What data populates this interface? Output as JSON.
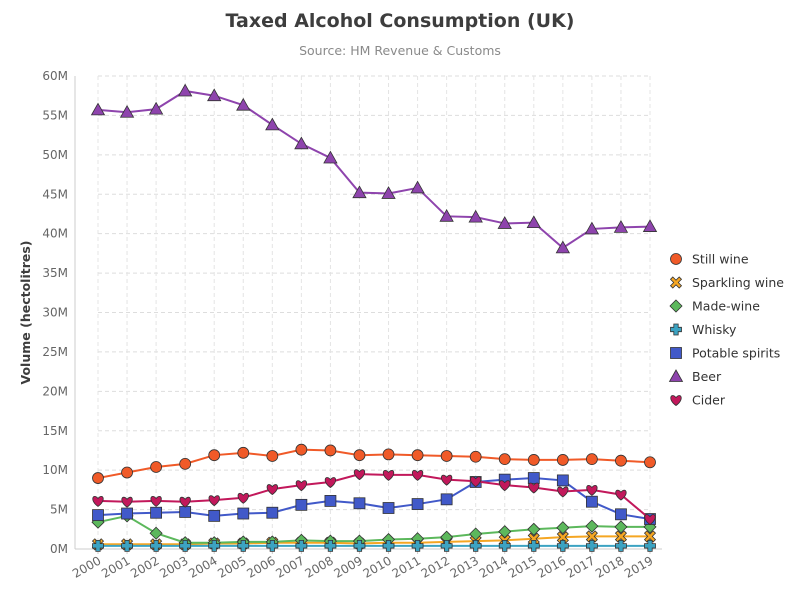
{
  "title": "Taxed Alcohol Consumption (UK)",
  "subtitle": "Source: HM Revenue & Customs",
  "chart_data": {
    "type": "line",
    "title": "Taxed Alcohol Consumption (UK)",
    "subtitle": "Source: HM Revenue & Customs",
    "xlabel": "",
    "ylabel": "Volume (hectolitres)",
    "ylim": [
      0,
      60000000
    ],
    "yticks": [
      "0M",
      "5M",
      "10M",
      "15M",
      "20M",
      "25M",
      "30M",
      "35M",
      "40M",
      "45M",
      "50M",
      "55M",
      "60M"
    ],
    "grid": true,
    "legend_position": "right",
    "categories": [
      "2000",
      "2001",
      "2002",
      "2003",
      "2004",
      "2005",
      "2006",
      "2007",
      "2008",
      "2009",
      "2010",
      "2011",
      "2012",
      "2013",
      "2014",
      "2015",
      "2016",
      "2017",
      "2018",
      "2019"
    ],
    "series": [
      {
        "name": "Still wine",
        "color": "#f05a28",
        "marker": "circle",
        "values": [
          9000000,
          9700000,
          10400000,
          10800000,
          11900000,
          12200000,
          11800000,
          12600000,
          12500000,
          11900000,
          12000000,
          11900000,
          11800000,
          11700000,
          11400000,
          11300000,
          11300000,
          11400000,
          11200000,
          11000000
        ]
      },
      {
        "name": "Sparkling wine",
        "color": "#f5a623",
        "marker": "cross",
        "values": [
          600000,
          600000,
          600000,
          600000,
          700000,
          700000,
          800000,
          800000,
          800000,
          700000,
          800000,
          800000,
          900000,
          1000000,
          1100000,
          1300000,
          1500000,
          1600000,
          1600000,
          1600000
        ]
      },
      {
        "name": "Made-wine",
        "color": "#5cb85c",
        "marker": "diamond",
        "values": [
          3400000,
          4200000,
          2000000,
          800000,
          800000,
          900000,
          900000,
          1100000,
          1000000,
          1000000,
          1200000,
          1300000,
          1500000,
          1900000,
          2200000,
          2500000,
          2700000,
          2900000,
          2800000,
          2800000
        ]
      },
      {
        "name": "Whisky",
        "color": "#3ca3c2",
        "marker": "plus",
        "values": [
          400000,
          400000,
          400000,
          400000,
          400000,
          400000,
          400000,
          400000,
          400000,
          400000,
          400000,
          400000,
          400000,
          400000,
          400000,
          400000,
          400000,
          400000,
          400000,
          400000
        ]
      },
      {
        "name": "Potable spirits",
        "color": "#4159c9",
        "marker": "square",
        "values": [
          4300000,
          4500000,
          4600000,
          4700000,
          4200000,
          4500000,
          4600000,
          5600000,
          6100000,
          5800000,
          5200000,
          5700000,
          6300000,
          8500000,
          8800000,
          9000000,
          8700000,
          6000000,
          4400000,
          3800000
        ]
      },
      {
        "name": "Beer",
        "color": "#8e44ad",
        "marker": "triangle",
        "values": [
          55700000,
          55400000,
          55800000,
          58100000,
          57500000,
          56300000,
          53800000,
          51400000,
          49600000,
          45200000,
          45100000,
          45800000,
          42200000,
          42100000,
          41300000,
          41400000,
          38200000,
          40600000,
          40800000,
          40900000
        ]
      },
      {
        "name": "Cider",
        "color": "#c2185b",
        "marker": "heart",
        "values": [
          6100000,
          6000000,
          6100000,
          6000000,
          6200000,
          6500000,
          7600000,
          8100000,
          8500000,
          9500000,
          9400000,
          9400000,
          8800000,
          8600000,
          8100000,
          7800000,
          7300000,
          7500000,
          6900000,
          3800000
        ]
      }
    ]
  }
}
